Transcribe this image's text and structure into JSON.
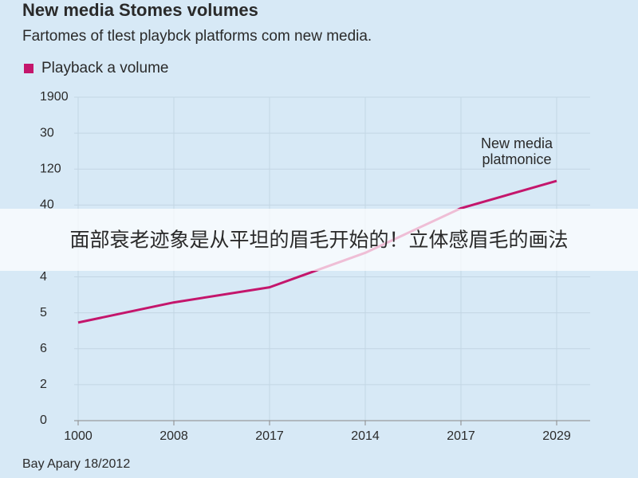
{
  "chart_data": {
    "type": "line",
    "title": "New media Stomes volumes",
    "subtitle": "Fartomes of tlest playbck platforms com new media.",
    "categories": [
      "1000",
      "2008",
      "2017",
      "2014",
      "2017",
      "2029"
    ],
    "series": [
      {
        "name": "Playback a volume",
        "color": "#c4166c",
        "values": [
          2.73,
          3.29,
          3.71,
          4.67,
          5.91,
          6.67
        ]
      }
    ],
    "ylim": [
      0,
      9
    ],
    "yticks": [
      0,
      {
        "value": 1,
        "label": "2"
      },
      {
        "value": 2,
        "label": "6"
      },
      {
        "value": 3,
        "label": "5"
      },
      4,
      {
        "value": 6,
        "label": "40"
      },
      {
        "value": 7,
        "label": "120"
      },
      {
        "value": 8,
        "label": "30"
      },
      {
        "value": 9,
        "label": "1900"
      }
    ],
    "grid": true,
    "legend": "top-left",
    "annotation": [
      "New media",
      "platmonice"
    ],
    "source": "Bay Apary 18/2012"
  },
  "banner": "面部衰老迹象是从平坦的眉毛开始的！立体感眉毛的画法"
}
